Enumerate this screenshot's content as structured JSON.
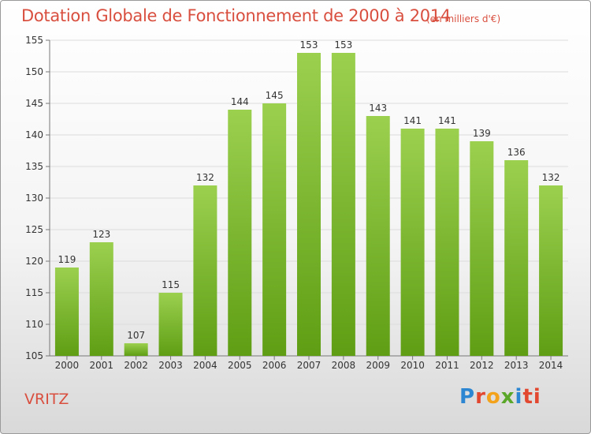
{
  "header": {
    "title": "Dotation Globale de Fonctionnement de 2000 à 2014",
    "unit": "(en milliers d'€)"
  },
  "footer": {
    "commune": "VRITZ",
    "logo_text": "Proxiti",
    "logo_letters": [
      "P",
      "r",
      "o",
      "x",
      "i",
      "ti"
    ]
  },
  "colors": {
    "title": "#d94f3f",
    "bar_top": "#9bd04f",
    "bar_bottom": "#5f9e14"
  },
  "chart_data": {
    "type": "bar",
    "title": "Dotation Globale de Fonctionnement de 2000 à 2014",
    "subtitle": "(en milliers d'€)",
    "categories": [
      "2000",
      "2001",
      "2002",
      "2003",
      "2004",
      "2005",
      "2006",
      "2007",
      "2008",
      "2009",
      "2010",
      "2011",
      "2012",
      "2013",
      "2014"
    ],
    "values": [
      119,
      123,
      107,
      115,
      132,
      144,
      145,
      153,
      153,
      143,
      141,
      141,
      139,
      136,
      132
    ],
    "ylim": [
      105,
      155
    ],
    "yticks": [
      105,
      110,
      115,
      120,
      125,
      130,
      135,
      140,
      145,
      150,
      155
    ],
    "grid": true,
    "data_labels": true
  }
}
